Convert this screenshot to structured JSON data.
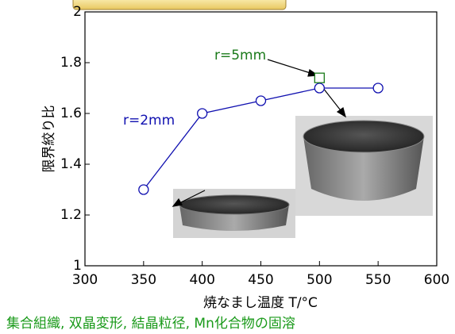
{
  "chart_data": {
    "type": "line",
    "x_label": "焼なまし温度 T/°C",
    "y_label": "限界絞り比",
    "caption": "集合組織, 双晶変形, 結晶粒径, Mn化合物の固溶",
    "xlim": [
      300,
      600
    ],
    "xticks": [
      300,
      350,
      400,
      450,
      500,
      550,
      600
    ],
    "ylim": [
      1,
      2
    ],
    "yticks": [
      1,
      1.2,
      1.4,
      1.6,
      1.8,
      2
    ],
    "series": [
      {
        "name": "r=2mm",
        "color": "#1010b0",
        "marker": "circle",
        "x": [
          350,
          400,
          450,
          500,
          550
        ],
        "values": [
          1.3,
          1.6,
          1.65,
          1.7,
          1.7
        ]
      },
      {
        "name": "r=5mm",
        "color": "#1a7a1a",
        "marker": "square",
        "x": [
          500
        ],
        "values": [
          1.74
        ]
      }
    ]
  }
}
